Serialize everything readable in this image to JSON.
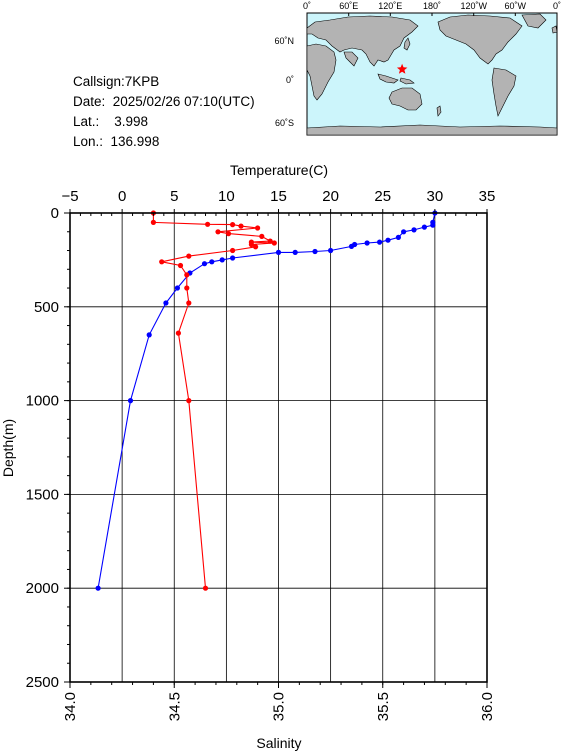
{
  "info": {
    "callsign": "Callsign:7KPB",
    "date": "Date:  2025/02/26 07:10(UTC)",
    "lat": "Lat.:    3.998",
    "lon": "Lon.:  136.998"
  },
  "map": {
    "top_labels": [
      "0˚",
      "60˚E",
      "120˚E",
      "180˚",
      "120˚W",
      "60˚W",
      "0˚"
    ],
    "left_labels": [
      "60˚N",
      "0˚",
      "60˚S"
    ],
    "ocean_color": "#ccf5fb",
    "land_color": "#b3b3b3",
    "marker_color": "#ff0000",
    "station_lon": 136.998,
    "station_lat": 3.998
  },
  "chart_data": {
    "type": "line",
    "y_axis": {
      "label": "Depth(m)",
      "range": [
        0,
        2500
      ],
      "reversed": true,
      "ticks": [
        "0",
        "500",
        "1000",
        "1500",
        "2000",
        "2500"
      ]
    },
    "top_axis": {
      "label": "Temperature(C)",
      "range": [
        -5,
        35
      ],
      "ticks": [
        "−5",
        "0",
        "5",
        "10",
        "15",
        "20",
        "25",
        "30",
        "35"
      ]
    },
    "bottom_axis": {
      "label": "Salinity",
      "range": [
        34.0,
        36.0
      ],
      "ticks": [
        "34.0",
        "34.5",
        "35.0",
        "35.5",
        "36.0"
      ]
    },
    "grid": true,
    "series": [
      {
        "axis": "temperature",
        "color": "#0000ff",
        "points": [
          [
            30.0,
            0
          ],
          [
            29.8,
            50
          ],
          [
            29.8,
            65
          ],
          [
            29.0,
            75
          ],
          [
            28.0,
            90
          ],
          [
            27.0,
            100
          ],
          [
            26.5,
            130
          ],
          [
            25.5,
            145
          ],
          [
            24.7,
            155
          ],
          [
            23.5,
            160
          ],
          [
            22.3,
            168
          ],
          [
            22.0,
            178
          ],
          [
            20.0,
            200
          ],
          [
            18.5,
            205
          ],
          [
            16.6,
            210
          ],
          [
            15.0,
            210
          ],
          [
            10.6,
            240
          ],
          [
            9.6,
            250
          ],
          [
            8.6,
            260
          ],
          [
            7.9,
            270
          ],
          [
            6.5,
            320
          ],
          [
            5.3,
            400
          ],
          [
            4.2,
            480
          ],
          [
            2.6,
            650
          ],
          [
            0.8,
            1000
          ],
          [
            -2.3,
            2000
          ]
        ]
      },
      {
        "axis": "salinity",
        "color": "#ff0000",
        "points": [
          [
            34.4,
            0
          ],
          [
            34.4,
            50
          ],
          [
            34.66,
            60
          ],
          [
            34.78,
            62
          ],
          [
            34.82,
            70
          ],
          [
            34.9,
            80
          ],
          [
            34.71,
            100
          ],
          [
            34.76,
            110
          ],
          [
            34.92,
            125
          ],
          [
            34.96,
            150
          ],
          [
            34.87,
            155
          ],
          [
            34.98,
            160
          ],
          [
            34.87,
            168
          ],
          [
            34.89,
            180
          ],
          [
            34.78,
            200
          ],
          [
            34.57,
            230
          ],
          [
            34.44,
            260
          ],
          [
            34.53,
            280
          ],
          [
            34.56,
            330
          ],
          [
            34.56,
            400
          ],
          [
            34.57,
            480
          ],
          [
            34.52,
            640
          ],
          [
            34.57,
            1000
          ],
          [
            34.65,
            2000
          ]
        ]
      }
    ]
  }
}
